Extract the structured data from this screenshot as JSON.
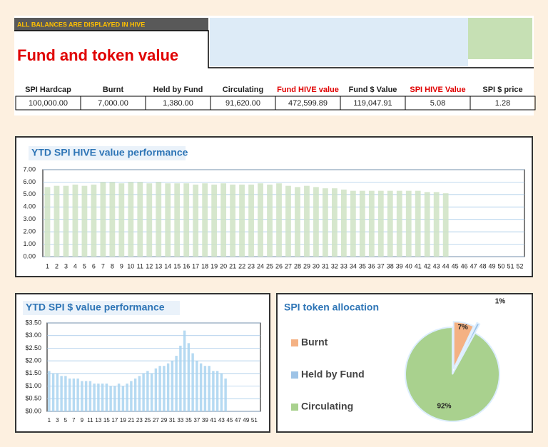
{
  "header": {
    "note": "ALL BALANCES ARE DISPLAYED IN HIVE",
    "title": "Fund and token value"
  },
  "table": {
    "columns": [
      "SPI Hardcap",
      "Burnt",
      "Held by Fund",
      "Circulating",
      "Fund HIVE value",
      "Fund $ Value",
      "SPI HIVE Value",
      "SPI $ price"
    ],
    "rows": [
      [
        "100,000.00",
        "7,000.00",
        "1,380.00",
        "91,620.00",
        "472,599.89",
        "119,047.91",
        "5.08",
        "1.28"
      ]
    ]
  },
  "chart_data": [
    {
      "type": "bar",
      "title": "YTD SPI HIVE value performance",
      "color": "#cfe3c4",
      "categories": [
        1,
        2,
        3,
        4,
        5,
        6,
        7,
        8,
        9,
        10,
        11,
        12,
        13,
        14,
        15,
        16,
        17,
        18,
        19,
        20,
        21,
        22,
        23,
        24,
        25,
        26,
        27,
        28,
        29,
        30,
        31,
        32,
        33,
        34,
        35,
        36,
        37,
        38,
        39,
        40,
        41,
        42,
        43,
        44,
        45,
        46,
        47,
        48,
        49,
        50,
        51,
        52
      ],
      "values": [
        5.6,
        5.7,
        5.7,
        5.8,
        5.7,
        5.8,
        6.0,
        6.0,
        5.9,
        6.0,
        6.0,
        5.9,
        6.0,
        5.9,
        5.9,
        5.9,
        5.8,
        5.9,
        5.8,
        5.9,
        5.8,
        5.8,
        5.8,
        5.9,
        5.8,
        5.9,
        5.7,
        5.6,
        5.7,
        5.6,
        5.5,
        5.5,
        5.4,
        5.3,
        5.3,
        5.3,
        5.3,
        5.3,
        5.3,
        5.3,
        5.3,
        5.2,
        5.2,
        5.1,
        null,
        null,
        null,
        null,
        null,
        null,
        null,
        null
      ],
      "ylim": [
        0,
        7
      ],
      "yticks": [
        {
          "value": 0,
          "label": "0.00"
        },
        {
          "value": 1,
          "label": "1.00"
        },
        {
          "value": 2,
          "label": "2.00"
        },
        {
          "value": 3,
          "label": "3.00"
        },
        {
          "value": 4,
          "label": "4.00"
        },
        {
          "value": 5,
          "label": "5.00"
        },
        {
          "value": 6,
          "label": "6.00"
        },
        {
          "value": 7,
          "label": "7.00"
        }
      ],
      "grid": true
    },
    {
      "type": "bar",
      "title": "YTD SPI $ value performance",
      "color": "#a9d4f0",
      "categories": [
        1,
        null,
        3,
        null,
        5,
        null,
        7,
        null,
        9,
        null,
        11,
        null,
        13,
        null,
        15,
        null,
        17,
        null,
        19,
        null,
        21,
        null,
        23,
        null,
        25,
        null,
        27,
        null,
        29,
        null,
        31,
        null,
        33,
        null,
        35,
        null,
        37,
        null,
        39,
        null,
        41,
        null,
        43,
        null,
        45,
        null,
        47,
        null,
        49,
        null,
        51,
        null
      ],
      "values": [
        1.6,
        1.5,
        1.5,
        1.4,
        1.4,
        1.3,
        1.3,
        1.3,
        1.2,
        1.2,
        1.2,
        1.1,
        1.1,
        1.1,
        1.1,
        1.0,
        1.0,
        1.1,
        1.0,
        1.1,
        1.2,
        1.3,
        1.4,
        1.5,
        1.6,
        1.5,
        1.7,
        1.8,
        1.8,
        1.9,
        2.0,
        2.2,
        2.6,
        3.2,
        2.7,
        2.3,
        2.0,
        1.9,
        1.8,
        1.8,
        1.6,
        1.6,
        1.5,
        1.3,
        null,
        null,
        null,
        null,
        null,
        null,
        null,
        null
      ],
      "ylim": [
        0,
        3.5
      ],
      "yticks": [
        {
          "value": 0,
          "label": "$0.00"
        },
        {
          "value": 0.5,
          "label": "$0.50"
        },
        {
          "value": 1,
          "label": "$1.00"
        },
        {
          "value": 1.5,
          "label": "$1.50"
        },
        {
          "value": 2,
          "label": "$2.00"
        },
        {
          "value": 2.5,
          "label": "$2.50"
        },
        {
          "value": 3,
          "label": "$3.00"
        },
        {
          "value": 3.5,
          "label": "$3.50"
        }
      ],
      "grid": true
    },
    {
      "type": "pie",
      "title": "SPI token allocation",
      "legend": "left",
      "series": [
        {
          "name": "Burnt",
          "color": "#f4b183"
        },
        {
          "name": "Held by Fund",
          "color": "#9dc3e6"
        },
        {
          "name": "Circulating",
          "color": "#a9d18e"
        }
      ],
      "values": [
        7,
        1,
        92
      ],
      "value_labels": [
        "7%",
        "1%",
        "92%"
      ]
    }
  ]
}
